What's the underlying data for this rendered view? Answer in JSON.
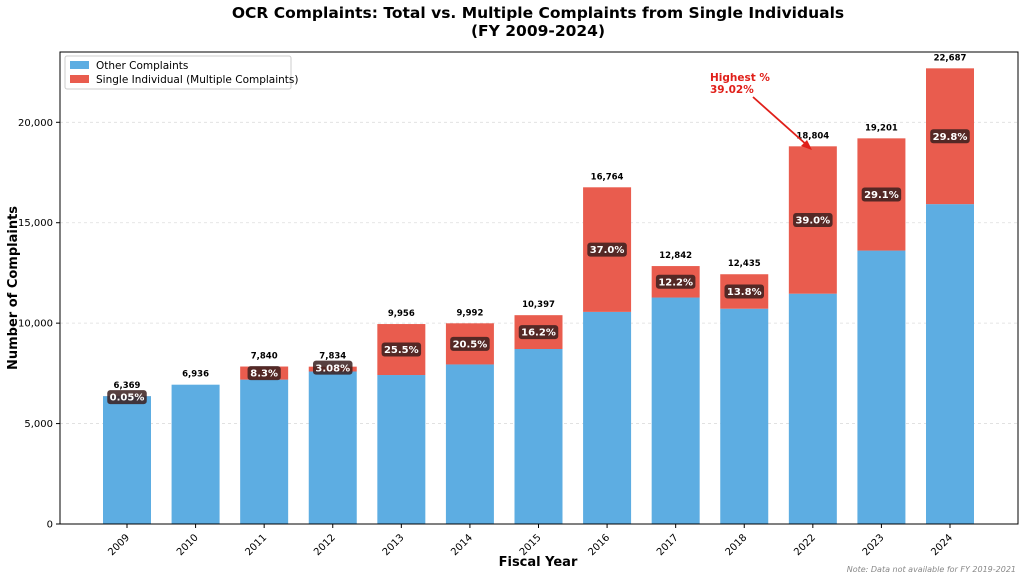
{
  "chart_data": {
    "type": "bar",
    "stacked": true,
    "title": "OCR Complaints: Total vs. Multiple Complaints from Single Individuals",
    "subtitle": "(FY 2009-2024)",
    "xlabel": "Fiscal Year",
    "ylabel": "Number of Complaints",
    "ylim": [
      0,
      23500
    ],
    "yticks": [
      0,
      5000,
      10000,
      15000,
      20000
    ],
    "ytick_labels": [
      "0",
      "5,000",
      "10,000",
      "15,000",
      "20,000"
    ],
    "grid": "horizontal dashed",
    "legend_position": "top-left",
    "categories": [
      "2009",
      "2010",
      "2011",
      "2012",
      "2013",
      "2014",
      "2015",
      "2016",
      "2017",
      "2018",
      "2022",
      "2023",
      "2024"
    ],
    "series": [
      {
        "name": "Other Complaints",
        "color": "#5dade2",
        "values": [
          6366,
          6936,
          7189,
          7593,
          7417,
          7944,
          8713,
          10561,
          11275,
          10719,
          11467,
          13613,
          15926
        ]
      },
      {
        "name": "Single Individual (Multiple Complaints)",
        "color": "#e95c4e",
        "values": [
          3,
          0,
          651,
          241,
          2539,
          2048,
          1684,
          6203,
          1567,
          1716,
          7337,
          5588,
          6761
        ]
      }
    ],
    "totals": [
      6369,
      6936,
      7840,
      7834,
      9956,
      9992,
      10397,
      16764,
      12842,
      12435,
      18804,
      19201,
      22687
    ],
    "total_labels": [
      "6,369",
      "6,936",
      "7,840",
      "7,834",
      "9,956",
      "9,992",
      "10,397",
      "16,764",
      "12,842",
      "12,435",
      "18,804",
      "19,201",
      "22,687"
    ],
    "percent_labels": [
      "0.05%",
      "",
      "8.3%",
      "3.08%",
      "25.5%",
      "20.5%",
      "16.2%",
      "37.0%",
      "12.2%",
      "13.8%",
      "39.0%",
      "29.1%",
      "29.8%"
    ],
    "annotation": {
      "line1": "Highest %",
      "line2": "39.02%",
      "target_category": "2022",
      "color": "#e0201a"
    },
    "note": "Note: Data not available for FY 2019-2021"
  }
}
